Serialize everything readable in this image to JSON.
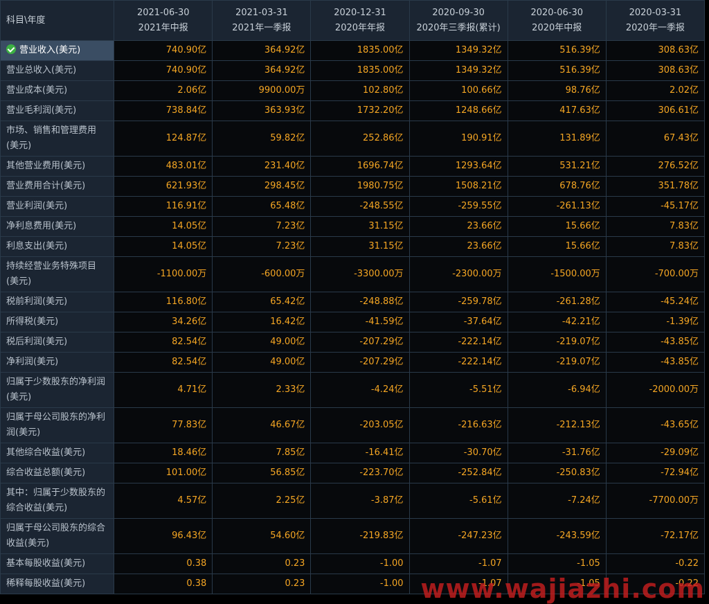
{
  "table": {
    "header_label": "科目\\年度",
    "columns": [
      {
        "date": "2021-06-30",
        "period": "2021年中报"
      },
      {
        "date": "2021-03-31",
        "period": "2021年一季报"
      },
      {
        "date": "2020-12-31",
        "period": "2020年年报"
      },
      {
        "date": "2020-09-30",
        "period": "2020年三季报(累计)"
      },
      {
        "date": "2020-06-30",
        "period": "2020年中报"
      },
      {
        "date": "2020-03-31",
        "period": "2020年一季报"
      }
    ],
    "rows": [
      {
        "label": "营业收入(美元)",
        "selected": true,
        "values": [
          "740.90亿",
          "364.92亿",
          "1835.00亿",
          "1349.32亿",
          "516.39亿",
          "308.63亿"
        ]
      },
      {
        "label": "营业总收入(美元)",
        "values": [
          "740.90亿",
          "364.92亿",
          "1835.00亿",
          "1349.32亿",
          "516.39亿",
          "308.63亿"
        ]
      },
      {
        "label": "营业成本(美元)",
        "values": [
          "2.06亿",
          "9900.00万",
          "102.80亿",
          "100.66亿",
          "98.76亿",
          "2.02亿"
        ]
      },
      {
        "label": "营业毛利润(美元)",
        "values": [
          "738.84亿",
          "363.93亿",
          "1732.20亿",
          "1248.66亿",
          "417.63亿",
          "306.61亿"
        ]
      },
      {
        "label": "市场、销售和管理费用(美元)",
        "double": true,
        "values": [
          "124.87亿",
          "59.82亿",
          "252.86亿",
          "190.91亿",
          "131.89亿",
          "67.43亿"
        ]
      },
      {
        "label": "其他营业费用(美元)",
        "values": [
          "483.01亿",
          "231.40亿",
          "1696.74亿",
          "1293.64亿",
          "531.21亿",
          "276.52亿"
        ]
      },
      {
        "label": "营业费用合计(美元)",
        "values": [
          "621.93亿",
          "298.45亿",
          "1980.75亿",
          "1508.21亿",
          "678.76亿",
          "351.78亿"
        ]
      },
      {
        "label": "营业利润(美元)",
        "values": [
          "116.91亿",
          "65.48亿",
          "-248.55亿",
          "-259.55亿",
          "-261.13亿",
          "-45.17亿"
        ]
      },
      {
        "label": "净利息费用(美元)",
        "values": [
          "14.05亿",
          "7.23亿",
          "31.15亿",
          "23.66亿",
          "15.66亿",
          "7.83亿"
        ]
      },
      {
        "label": "利息支出(美元)",
        "values": [
          "14.05亿",
          "7.23亿",
          "31.15亿",
          "23.66亿",
          "15.66亿",
          "7.83亿"
        ]
      },
      {
        "label": "持续经营业务特殊项目(美元)",
        "double": true,
        "values": [
          "-1100.00万",
          "-600.00万",
          "-3300.00万",
          "-2300.00万",
          "-1500.00万",
          "-700.00万"
        ]
      },
      {
        "label": "税前利润(美元)",
        "values": [
          "116.80亿",
          "65.42亿",
          "-248.88亿",
          "-259.78亿",
          "-261.28亿",
          "-45.24亿"
        ]
      },
      {
        "label": "所得税(美元)",
        "values": [
          "34.26亿",
          "16.42亿",
          "-41.59亿",
          "-37.64亿",
          "-42.21亿",
          "-1.39亿"
        ]
      },
      {
        "label": "税后利润(美元)",
        "values": [
          "82.54亿",
          "49.00亿",
          "-207.29亿",
          "-222.14亿",
          "-219.07亿",
          "-43.85亿"
        ]
      },
      {
        "label": "净利润(美元)",
        "values": [
          "82.54亿",
          "49.00亿",
          "-207.29亿",
          "-222.14亿",
          "-219.07亿",
          "-43.85亿"
        ]
      },
      {
        "label": "归属于少数股东的净利润(美元)",
        "double": true,
        "values": [
          "4.71亿",
          "2.33亿",
          "-4.24亿",
          "-5.51亿",
          "-6.94亿",
          "-2000.00万"
        ]
      },
      {
        "label": "归属于母公司股东的净利润(美元)",
        "double": true,
        "values": [
          "77.83亿",
          "46.67亿",
          "-203.05亿",
          "-216.63亿",
          "-212.13亿",
          "-43.65亿"
        ]
      },
      {
        "label": "其他综合收益(美元)",
        "values": [
          "18.46亿",
          "7.85亿",
          "-16.41亿",
          "-30.70亿",
          "-31.76亿",
          "-29.09亿"
        ]
      },
      {
        "label": "综合收益总额(美元)",
        "values": [
          "101.00亿",
          "56.85亿",
          "-223.70亿",
          "-252.84亿",
          "-250.83亿",
          "-72.94亿"
        ]
      },
      {
        "label": "其中：归属于少数股东的综合收益(美元)",
        "double": true,
        "values": [
          "4.57亿",
          "2.25亿",
          "-3.87亿",
          "-5.61亿",
          "-7.24亿",
          "-7700.00万"
        ]
      },
      {
        "label": "归属于母公司股东的综合收益(美元)",
        "double": true,
        "values": [
          "96.43亿",
          "54.60亿",
          "-219.83亿",
          "-247.23亿",
          "-243.59亿",
          "-72.17亿"
        ]
      },
      {
        "label": "基本每股收益(美元)",
        "values": [
          "0.38",
          "0.23",
          "-1.00",
          "-1.07",
          "-1.05",
          "-0.22"
        ]
      },
      {
        "label": "稀释每股收益(美元)",
        "values": [
          "0.38",
          "0.23",
          "-1.00",
          "-1.07",
          "-1.05",
          "-0.22"
        ]
      }
    ]
  },
  "watermark": "www.wajiazhi.com",
  "icons": {
    "selected_row": "check-icon"
  },
  "colors": {
    "value_text": "#f5a623",
    "label_text": "#b9c2cc",
    "label_bg": "#1b2532",
    "value_bg": "#07090c",
    "selected_bg": "#3a4d63",
    "check": "#3cb043",
    "watermark": "#c41e1e"
  }
}
